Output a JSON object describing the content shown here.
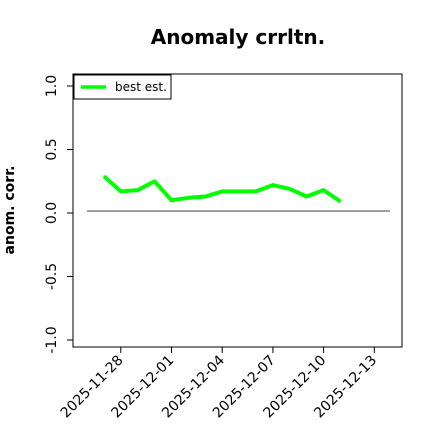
{
  "chart_data": {
    "type": "line",
    "title": "Anomaly crrltn.",
    "xlabel": "",
    "ylabel": "anom. corr.",
    "ylim": [
      -1.0,
      1.0
    ],
    "xlim": [
      "2025-11-26",
      "2025-12-14"
    ],
    "y_ticks": [
      "-1.0",
      "-0.5",
      "0.0",
      "0.5",
      "1.0"
    ],
    "x_ticks": [
      "2025-11-28",
      "2025-12-01",
      "2025-12-04",
      "2025-12-07",
      "2025-12-10",
      "2025-12-13"
    ],
    "legend": {
      "position": "top-left",
      "entries": [
        "best est."
      ]
    },
    "grid": false,
    "reference_line": 0.0,
    "series": [
      {
        "name": "best est.",
        "color": "#00ff00",
        "x": [
          "2025-11-27",
          "2025-11-28",
          "2025-11-29",
          "2025-11-30",
          "2025-12-01",
          "2025-12-02",
          "2025-12-03",
          "2025-12-04",
          "2025-12-05",
          "2025-12-06",
          "2025-12-07",
          "2025-12-08",
          "2025-12-09",
          "2025-12-10",
          "2025-12-11"
        ],
        "values": [
          0.29,
          0.17,
          0.18,
          0.25,
          0.1,
          0.12,
          0.13,
          0.17,
          0.17,
          0.17,
          0.22,
          0.19,
          0.13,
          0.18,
          0.09
        ]
      }
    ]
  }
}
